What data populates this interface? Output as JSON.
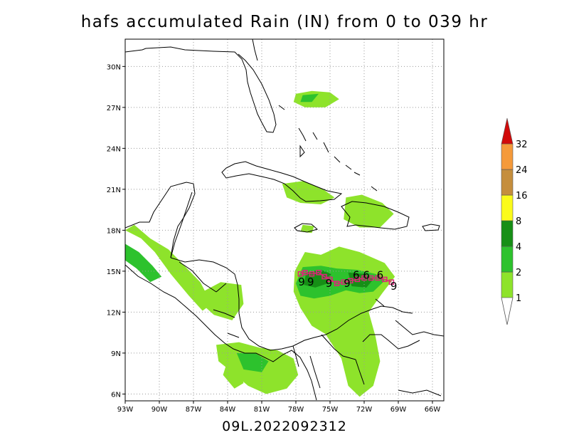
{
  "title": "hafs accumulated Rain (IN) from 0 to 039 hr",
  "subtitle": "09L.2022092312",
  "map": {
    "lon_range": [
      -93,
      -65
    ],
    "lat_range": [
      5.5,
      32
    ],
    "lon_ticks": [
      {
        "value": -93,
        "label": "93W"
      },
      {
        "value": -90,
        "label": "90W"
      },
      {
        "value": -87,
        "label": "87W"
      },
      {
        "value": -84,
        "label": "84W"
      },
      {
        "value": -81,
        "label": "81W"
      },
      {
        "value": -78,
        "label": "78W"
      },
      {
        "value": -75,
        "label": "75W"
      },
      {
        "value": -72,
        "label": "72W"
      },
      {
        "value": -69,
        "label": "69W"
      },
      {
        "value": -66,
        "label": "66W"
      }
    ],
    "lat_ticks": [
      {
        "value": 6,
        "label": "6N"
      },
      {
        "value": 9,
        "label": "9N"
      },
      {
        "value": 12,
        "label": "12N"
      },
      {
        "value": 15,
        "label": "15N"
      },
      {
        "value": 18,
        "label": "18N"
      },
      {
        "value": 21,
        "label": "21N"
      },
      {
        "value": 24,
        "label": "24N"
      },
      {
        "value": 27,
        "label": "27N"
      },
      {
        "value": 30,
        "label": "30N"
      }
    ],
    "grid": true,
    "track_color": "#e0237a",
    "track_lons": [
      -77.6,
      -77.2,
      -76.6,
      -76.0,
      -75.5,
      -75.0,
      -74.4,
      -73.8,
      -73.2,
      -72.6,
      -72.0,
      -71.4,
      -70.8,
      -70.2,
      -69.6
    ],
    "track_lats": [
      14.8,
      14.9,
      14.8,
      14.9,
      14.6,
      14.4,
      14.1,
      14.2,
      14.3,
      14.4,
      14.5,
      14.5,
      14.5,
      14.4,
      14.2
    ],
    "storm_symbols": [
      {
        "lon": -77.5,
        "lat": 14.2,
        "label": "9"
      },
      {
        "lon": -76.7,
        "lat": 14.2,
        "label": "9"
      },
      {
        "lon": -75.1,
        "lat": 14.1,
        "label": "9"
      },
      {
        "lon": -73.5,
        "lat": 14.1,
        "label": "9"
      },
      {
        "lon": -72.7,
        "lat": 14.7,
        "label": "6"
      },
      {
        "lon": -71.8,
        "lat": 14.7,
        "label": "6"
      },
      {
        "lon": -70.6,
        "lat": 14.7,
        "label": "6"
      },
      {
        "lon": -69.4,
        "lat": 13.9,
        "label": "9"
      }
    ],
    "rain_colors": {
      "1": "#8ee32b",
      "2": "#2dc22d",
      "4": "#168f16"
    },
    "rain_regions": [
      {
        "level": "1",
        "points": [
          [
            -77.2,
            16.4
          ],
          [
            -75.8,
            16.2
          ],
          [
            -74.2,
            16.8
          ],
          [
            -72.4,
            16.4
          ],
          [
            -70.2,
            15.6
          ],
          [
            -69.3,
            14.6
          ],
          [
            -70.4,
            13.4
          ],
          [
            -71.6,
            12.0
          ],
          [
            -71.0,
            10.2
          ],
          [
            -70.6,
            8.4
          ],
          [
            -71.2,
            6.6
          ],
          [
            -72.4,
            5.8
          ],
          [
            -73.4,
            6.6
          ],
          [
            -74.0,
            8.6
          ],
          [
            -75.4,
            10.4
          ],
          [
            -76.6,
            11.0
          ],
          [
            -77.6,
            12.3
          ],
          [
            -78.2,
            13.5
          ],
          [
            -78.1,
            15.0
          ]
        ]
      },
      {
        "level": "2",
        "points": [
          [
            -77.4,
            15.3
          ],
          [
            -75.8,
            15.4
          ],
          [
            -74.4,
            15.2
          ],
          [
            -72.6,
            15.1
          ],
          [
            -71.0,
            14.8
          ],
          [
            -70.2,
            14.3
          ],
          [
            -71.2,
            13.5
          ],
          [
            -72.4,
            13.4
          ],
          [
            -73.6,
            13.6
          ],
          [
            -75.0,
            13.2
          ],
          [
            -76.4,
            13.0
          ],
          [
            -77.6,
            13.2
          ],
          [
            -78.0,
            14.1
          ]
        ]
      },
      {
        "level": "4",
        "points": [
          [
            -77.1,
            14.9
          ],
          [
            -75.8,
            15.1
          ],
          [
            -74.9,
            14.8
          ],
          [
            -75.2,
            14.1
          ],
          [
            -76.3,
            13.8
          ],
          [
            -77.3,
            14.0
          ]
        ]
      },
      {
        "level": "4",
        "points": [
          [
            -73.4,
            14.9
          ],
          [
            -72.0,
            14.8
          ],
          [
            -71.2,
            14.4
          ],
          [
            -71.8,
            13.8
          ],
          [
            -73.1,
            13.9
          ]
        ]
      },
      {
        "level": "1",
        "points": [
          [
            -93.0,
            18.0
          ],
          [
            -91.6,
            17.4
          ],
          [
            -90.4,
            16.4
          ],
          [
            -89.0,
            14.8
          ],
          [
            -87.4,
            13.2
          ],
          [
            -86.2,
            12.1
          ],
          [
            -85.4,
            12.6
          ],
          [
            -86.4,
            14.2
          ],
          [
            -87.8,
            15.4
          ],
          [
            -89.2,
            16.6
          ],
          [
            -90.8,
            17.4
          ],
          [
            -92.2,
            18.4
          ]
        ]
      },
      {
        "level": "2",
        "points": [
          [
            -93.0,
            17.0
          ],
          [
            -91.8,
            16.4
          ],
          [
            -90.6,
            15.4
          ],
          [
            -89.8,
            14.6
          ],
          [
            -90.8,
            14.2
          ],
          [
            -92.0,
            15.2
          ],
          [
            -93.0,
            15.8
          ]
        ]
      },
      {
        "level": "1",
        "points": [
          [
            -86.4,
            13.4
          ],
          [
            -84.6,
            14.2
          ],
          [
            -82.8,
            14.0
          ],
          [
            -82.6,
            12.6
          ],
          [
            -83.6,
            11.4
          ],
          [
            -85.2,
            11.8
          ],
          [
            -86.0,
            12.4
          ]
        ]
      },
      {
        "level": "1",
        "points": [
          [
            -85.0,
            9.6
          ],
          [
            -83.0,
            9.8
          ],
          [
            -81.2,
            9.4
          ],
          [
            -79.6,
            9.2
          ],
          [
            -78.2,
            8.6
          ],
          [
            -77.8,
            7.4
          ],
          [
            -78.8,
            6.4
          ],
          [
            -80.6,
            6.0
          ],
          [
            -82.2,
            6.6
          ],
          [
            -83.6,
            7.6
          ],
          [
            -84.8,
            8.4
          ]
        ]
      },
      {
        "level": "2",
        "points": [
          [
            -83.2,
            9.0
          ],
          [
            -81.6,
            9.0
          ],
          [
            -80.4,
            8.4
          ],
          [
            -81.0,
            7.6
          ],
          [
            -82.6,
            7.8
          ]
        ]
      },
      {
        "level": "1",
        "points": [
          [
            -78.0,
            28.0
          ],
          [
            -76.6,
            28.2
          ],
          [
            -75.0,
            28.1
          ],
          [
            -74.2,
            27.6
          ],
          [
            -75.4,
            27.0
          ],
          [
            -77.2,
            27.0
          ],
          [
            -78.2,
            27.4
          ]
        ]
      },
      {
        "level": "2",
        "points": [
          [
            -77.4,
            27.9
          ],
          [
            -76.0,
            28.0
          ],
          [
            -76.6,
            27.4
          ],
          [
            -77.6,
            27.4
          ]
        ]
      },
      {
        "level": "1",
        "points": [
          [
            -79.2,
            21.4
          ],
          [
            -77.4,
            21.6
          ],
          [
            -75.6,
            21.0
          ],
          [
            -74.6,
            20.4
          ],
          [
            -75.8,
            19.9
          ],
          [
            -77.6,
            20.0
          ],
          [
            -78.8,
            20.4
          ]
        ]
      },
      {
        "level": "1",
        "points": [
          [
            -73.6,
            20.4
          ],
          [
            -72.2,
            20.6
          ],
          [
            -70.4,
            20.0
          ],
          [
            -69.4,
            19.2
          ],
          [
            -70.6,
            18.2
          ],
          [
            -72.4,
            18.2
          ],
          [
            -73.8,
            18.8
          ]
        ]
      },
      {
        "level": "1",
        "points": [
          [
            -77.4,
            18.4
          ],
          [
            -76.4,
            18.3
          ],
          [
            -76.6,
            17.8
          ],
          [
            -77.6,
            17.9
          ]
        ]
      },
      {
        "level": "1",
        "points": [
          [
            -83.8,
            9.0
          ],
          [
            -83.2,
            8.6
          ],
          [
            -82.6,
            6.8
          ],
          [
            -83.4,
            6.4
          ],
          [
            -84.4,
            7.4
          ]
        ]
      }
    ]
  },
  "colorbar": {
    "levels": [
      {
        "label": "1",
        "color": "#8ee32b"
      },
      {
        "label": "2",
        "color": "#2dc22d"
      },
      {
        "label": "4",
        "color": "#168f16"
      },
      {
        "label": "8",
        "color": "#fbfb1a"
      },
      {
        "label": "16",
        "color": "#c58e3d"
      },
      {
        "label": "24",
        "color": "#f59a3a"
      },
      {
        "label": "32",
        "color": "#d10a0a"
      }
    ]
  }
}
